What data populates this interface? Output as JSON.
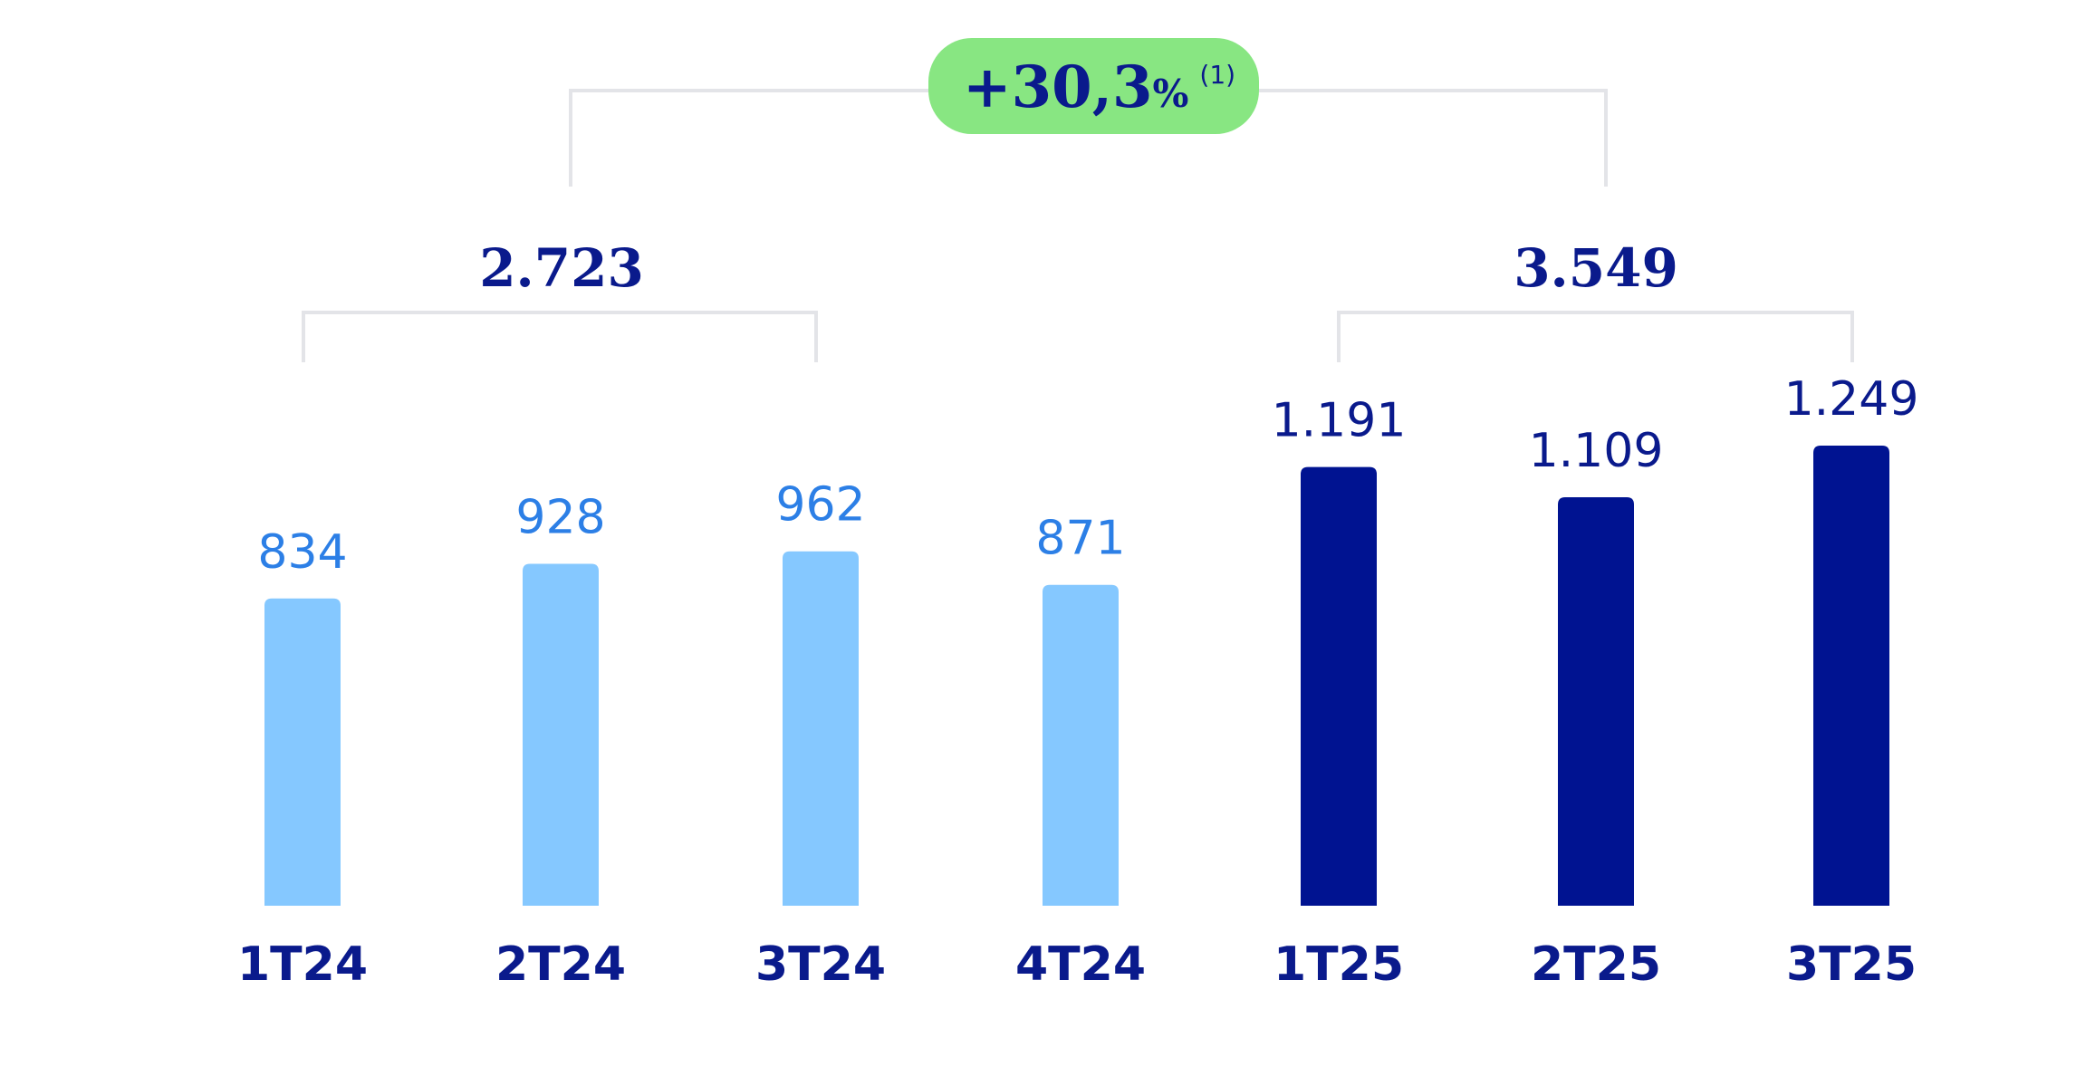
{
  "colors": {
    "bar_2024": "#85c8ff",
    "bar_2025": "#001391",
    "label_2024": "#2c7fe6",
    "label_2025": "#0a1a8c",
    "bracket": "#e3e4e8",
    "badge_bg": "#88e682"
  },
  "chart_data": {
    "type": "bar",
    "categories": [
      "1T24",
      "2T24",
      "3T24",
      "4T24",
      "1T25",
      "2T25",
      "3T25"
    ],
    "values": [
      834,
      928,
      962,
      871,
      1191,
      1109,
      1249
    ],
    "value_labels": [
      "834",
      "928",
      "962",
      "871",
      "1.191",
      "1.109",
      "1.249"
    ],
    "series_year": [
      "2024",
      "2024",
      "2024",
      "2024",
      "2025",
      "2025",
      "2025"
    ],
    "ylim": [
      0,
      1249
    ],
    "grid": false,
    "groups": [
      {
        "label": "2.723",
        "value": 2723,
        "categories": [
          "1T24",
          "2T24",
          "3T24"
        ]
      },
      {
        "label": "3.549",
        "value": 3549,
        "categories": [
          "1T25",
          "2T25",
          "3T25"
        ]
      }
    ],
    "growth": {
      "main": "+30,3",
      "pct": "%",
      "note": "(1)"
    }
  }
}
